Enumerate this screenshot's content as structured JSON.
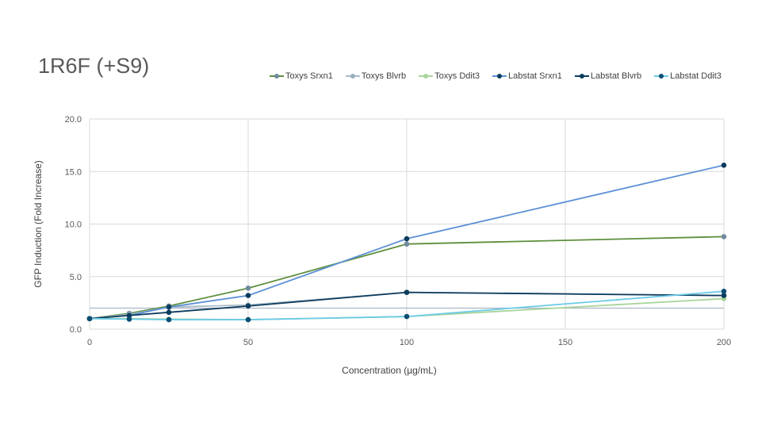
{
  "chart_data": {
    "type": "line",
    "title": "1R6F (+S9)",
    "xlabel": "Concentration (µg/mL)",
    "ylabel": "GFP Induction (Fold Increase)",
    "xlim": [
      0,
      200
    ],
    "ylim": [
      0,
      20
    ],
    "xticks": [
      0,
      50,
      100,
      150,
      200
    ],
    "yticks": [
      "0.0",
      "5.0",
      "10.0",
      "15.0",
      "20.0"
    ],
    "threshold": 2.0,
    "x": [
      0,
      12.5,
      25,
      50,
      100,
      200
    ],
    "legend_position": "top-right",
    "series": [
      {
        "name": "Toxys Srxn1",
        "line": "#5e8f3c",
        "marker": "#6f8a9c",
        "values": [
          1.0,
          1.5,
          2.2,
          3.9,
          8.1,
          8.8
        ]
      },
      {
        "name": "Toxys Blvrb",
        "line": "#a9bcc7",
        "marker": "#98aebb",
        "values": [
          1.0,
          1.4,
          2.1,
          2.3,
          3.5,
          3.2
        ]
      },
      {
        "name": "Toxys Ddit3",
        "line": "#a8d49a",
        "marker": "#a8d49a",
        "values": [
          1.0,
          1.0,
          0.95,
          0.9,
          1.2,
          2.9
        ]
      },
      {
        "name": "Labstat Srxn1",
        "line": "#5b8fd6",
        "marker": "#0b3c5d",
        "values": [
          1.0,
          1.3,
          2.1,
          3.2,
          8.6,
          15.6
        ]
      },
      {
        "name": "Labstat Blvrb",
        "line": "#0d3b5e",
        "marker": "#0b3c5d",
        "values": [
          1.0,
          1.3,
          1.6,
          2.2,
          3.5,
          3.2
        ]
      },
      {
        "name": "Labstat Ddit3",
        "line": "#6ccbe6",
        "marker": "#0b4d73",
        "values": [
          1.0,
          0.95,
          0.9,
          0.9,
          1.2,
          3.6
        ]
      }
    ]
  }
}
